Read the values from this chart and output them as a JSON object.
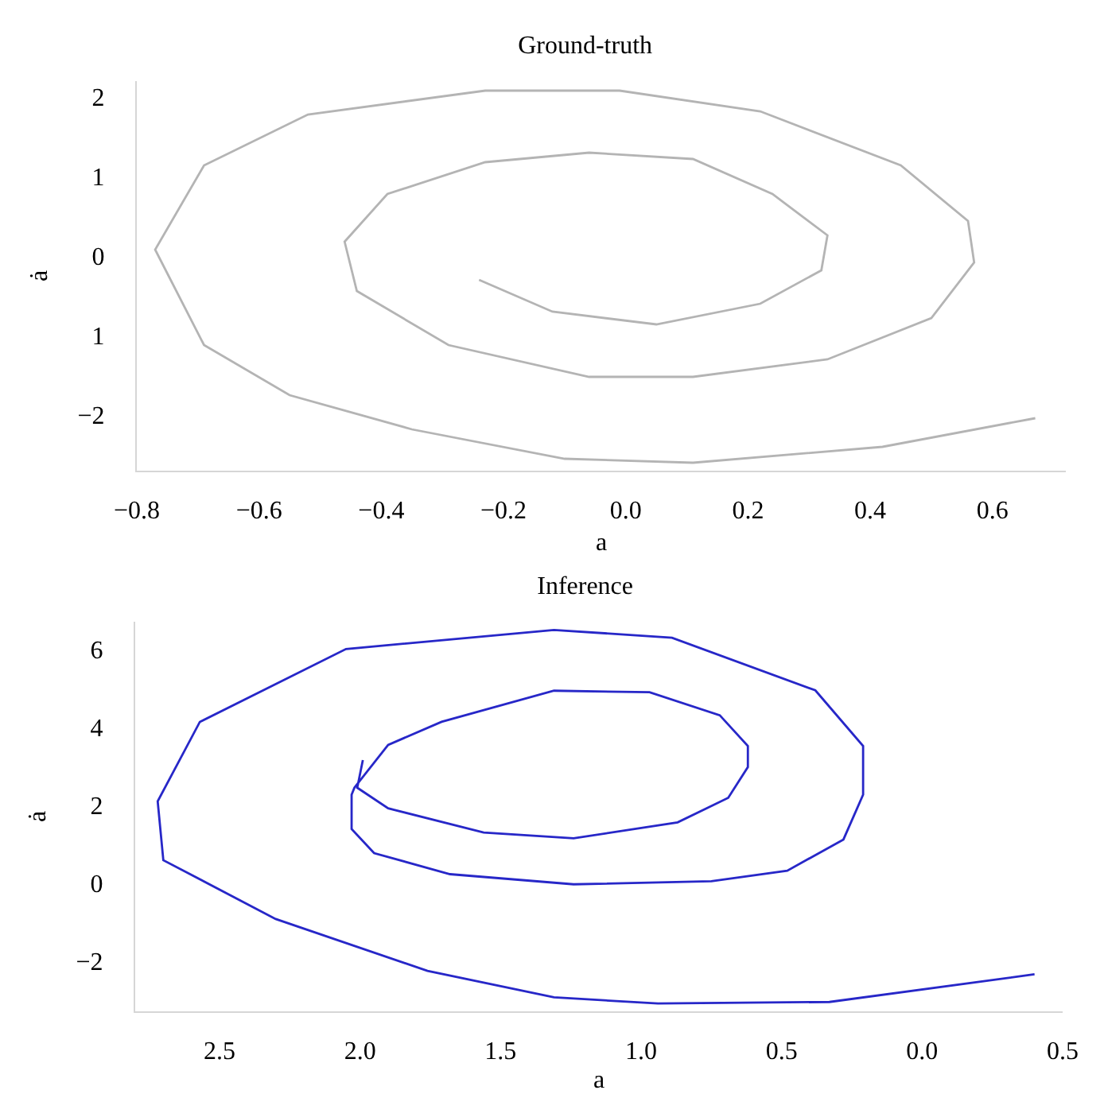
{
  "chart_data": [
    {
      "type": "line",
      "title": "Ground-truth",
      "xlabel": "a",
      "ylabel": "ȧ",
      "series": [
        {
          "color": "#b4b4b4",
          "x": [
            0.67,
            0.42,
            0.11,
            -0.1,
            -0.35,
            -0.55,
            -0.69,
            -0.77,
            -0.69,
            -0.52,
            -0.23,
            -0.01,
            0.22,
            0.45,
            0.56,
            0.57,
            0.5,
            0.33,
            0.11,
            -0.06,
            -0.29,
            -0.44,
            -0.46,
            -0.39,
            -0.23,
            -0.06,
            0.11,
            0.24,
            0.33,
            0.32,
            0.22,
            0.05,
            -0.12,
            -0.24
          ],
          "values": [
            -2.04,
            -2.4,
            -2.6,
            -2.55,
            -2.18,
            -1.75,
            -1.12,
            0.08,
            1.14,
            1.78,
            2.08,
            2.08,
            1.82,
            1.14,
            0.44,
            -0.08,
            -0.78,
            -1.3,
            -1.52,
            -1.52,
            -1.12,
            -0.44,
            0.18,
            0.78,
            1.18,
            1.3,
            1.22,
            0.78,
            0.26,
            -0.18,
            -0.6,
            -0.86,
            -0.7,
            -0.3
          ]
        }
      ],
      "xlim": [
        -0.8,
        0.72
      ],
      "ylim": [
        -2.7,
        2.2
      ],
      "xticks": [
        -0.8,
        -0.6,
        -0.4,
        -0.2,
        {
          "value": 0,
          "label": "0.0"
        },
        0.2,
        0.4,
        0.6
      ],
      "yticks": [
        -2,
        {
          "value": -1,
          "label": "1"
        },
        0,
        1,
        2
      ]
    },
    {
      "type": "line",
      "title": "Inference",
      "xlabel": "a",
      "ylabel": "ȧ",
      "series": [
        {
          "color": "#2727c8",
          "x": [
            0.4,
            -0.33,
            -0.94,
            -1.31,
            -1.76,
            -2.3,
            -2.7,
            -2.72,
            -2.57,
            -2.05,
            -1.31,
            -0.89,
            -0.38,
            -0.21,
            -0.21,
            -0.28,
            -0.48,
            -0.75,
            -1.24,
            -1.68,
            -1.95,
            -2.03,
            -2.03,
            -2.02,
            -1.9,
            -1.71,
            -1.31,
            -0.97,
            -0.72,
            -0.62,
            -0.62,
            -0.69,
            -0.87,
            -1.24,
            -1.56,
            -1.9,
            -2.01,
            -1.99
          ],
          "values": [
            -2.35,
            -3.06,
            -3.1,
            -2.94,
            -2.26,
            -0.93,
            0.58,
            2.09,
            4.13,
            6.0,
            6.49,
            6.29,
            4.94,
            3.51,
            2.26,
            1.11,
            0.31,
            0.04,
            -0.04,
            0.22,
            0.76,
            1.38,
            2.26,
            2.44,
            3.54,
            4.13,
            4.93,
            4.89,
            4.3,
            3.51,
            2.97,
            2.18,
            1.55,
            1.14,
            1.29,
            1.91,
            2.44,
            3.15
          ]
        }
      ],
      "xlim": [
        -2.8,
        0.5
      ],
      "ylim": [
        -3.3,
        6.7
      ],
      "xticks": [
        {
          "value": -2.5,
          "label": "2.5"
        },
        {
          "value": -2.0,
          "label": "2.0"
        },
        {
          "value": -1.5,
          "label": "1.5"
        },
        {
          "value": -1.0,
          "label": "1.0"
        },
        {
          "value": -0.5,
          "label": "0.5"
        },
        {
          "value": 0,
          "label": "0.0"
        },
        0.5
      ],
      "yticks": [
        -2,
        0,
        2,
        4,
        6
      ]
    }
  ]
}
